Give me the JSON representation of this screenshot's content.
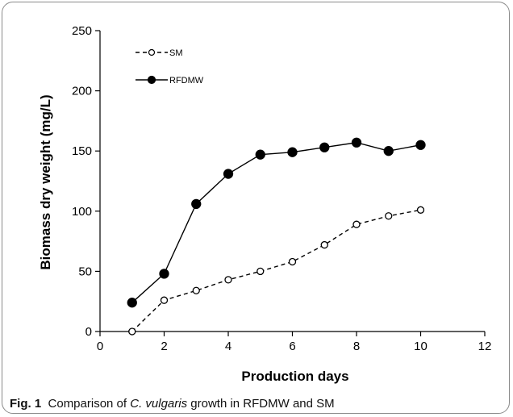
{
  "caption": {
    "label": "Fig. 1",
    "text_before": "Comparison of ",
    "species": "C. vulgaris",
    "text_after": " growth in RFDMW and SM"
  },
  "chart_data": {
    "type": "line",
    "xlabel": "Production days",
    "ylabel": "Biomass dry weight (mg/L)",
    "xlim": [
      0,
      12
    ],
    "ylim": [
      0,
      250
    ],
    "xticks": [
      0,
      2,
      4,
      6,
      8,
      10,
      12
    ],
    "yticks": [
      0,
      50,
      100,
      150,
      200,
      250
    ],
    "grid": false,
    "legend_position": "top-left",
    "series": [
      {
        "name": "SM",
        "style": "dashed",
        "marker": "open-circle",
        "color": "#000000",
        "x": [
          1,
          2,
          3,
          4,
          5,
          6,
          7,
          8,
          9,
          10
        ],
        "y": [
          0,
          26,
          34,
          43,
          50,
          58,
          72,
          89,
          96,
          101
        ]
      },
      {
        "name": "RFDMW",
        "style": "solid",
        "marker": "filled-circle",
        "color": "#000000",
        "x": [
          1,
          2,
          3,
          4,
          5,
          6,
          7,
          8,
          9,
          10
        ],
        "y": [
          24,
          48,
          106,
          131,
          147,
          149,
          153,
          157,
          150,
          155
        ]
      }
    ]
  }
}
